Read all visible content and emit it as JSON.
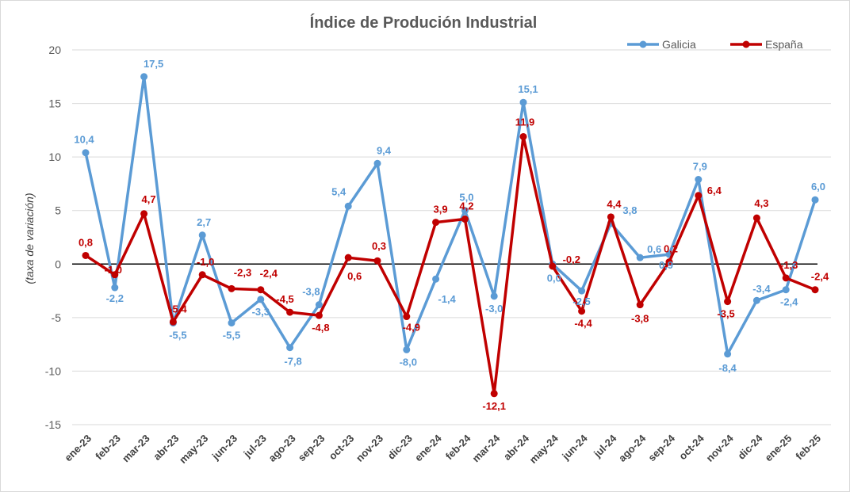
{
  "chart_data": {
    "type": "line",
    "title": "Índice de Produción Industrial",
    "ylabel": "(taxa de variación)",
    "xlabel": "",
    "ylim": [
      -15,
      20
    ],
    "yticks": [
      -15,
      -10,
      -5,
      0,
      5,
      10,
      15,
      20
    ],
    "ytick_labels": [
      "-15",
      "-10",
      "-5",
      "0",
      "5",
      "10",
      "15",
      "20"
    ],
    "grid": true,
    "legend_position": "top-right",
    "categories": [
      "ene-23",
      "feb-23",
      "mar-23",
      "abr-23",
      "may-23",
      "jun-23",
      "jul-23",
      "ago-23",
      "sep-23",
      "oct-23",
      "nov-23",
      "dic-23",
      "ene-24",
      "feb-24",
      "mar-24",
      "abr-24",
      "may-24",
      "jun-24",
      "jul-24",
      "ago-24",
      "sep-24",
      "oct-24",
      "nov-24",
      "dic-24",
      "ene-25",
      "feb-25"
    ],
    "series": [
      {
        "name": "Galicia",
        "color": "#5b9bd5",
        "values": [
          10.4,
          -2.2,
          17.5,
          -5.5,
          2.7,
          -5.5,
          -3.3,
          -7.8,
          -3.8,
          5.4,
          9.4,
          -8.0,
          -1.4,
          5.0,
          -3.0,
          15.1,
          0.0,
          -2.5,
          3.8,
          0.6,
          0.9,
          7.9,
          -8.4,
          -3.4,
          -2.4,
          6.0
        ],
        "labels": [
          "10,4",
          "-2,2",
          "17,5",
          "-5,5",
          "2,7",
          "-5,5",
          "-3,3",
          "-7,8",
          "-3,8",
          "5,4",
          "9,4",
          "-8,0",
          "-1,4",
          "5,0",
          "-3,0",
          "15,1",
          "0,0",
          "-2,5",
          "3,8",
          "0,6",
          "0,9",
          "7,9",
          "-8,4",
          "-3,4",
          "-2,4",
          "6,0"
        ]
      },
      {
        "name": "España",
        "color": "#c00000",
        "values": [
          0.8,
          -1.0,
          4.7,
          -5.4,
          -1.0,
          -2.3,
          -2.4,
          -4.5,
          -4.8,
          0.6,
          0.3,
          -4.9,
          3.9,
          4.2,
          -12.1,
          11.9,
          -0.2,
          -4.4,
          4.4,
          -3.8,
          0.2,
          6.4,
          -3.5,
          4.3,
          -1.3,
          -2.4
        ],
        "labels": [
          "0,8",
          "-1,0",
          "4,7",
          "-5,4",
          "-1,0",
          "-2,3",
          "-2,4",
          "-4,5",
          "-4,8",
          "0,6",
          "0,3",
          "-4,9",
          "3,9",
          "4,2",
          "-12,1",
          "11,9",
          "-0,2",
          "-4,4",
          "4,4",
          "-3,8",
          "0,2",
          "6,4",
          "-3,5",
          "4,3",
          "-1,3",
          "-2,4"
        ]
      }
    ]
  }
}
